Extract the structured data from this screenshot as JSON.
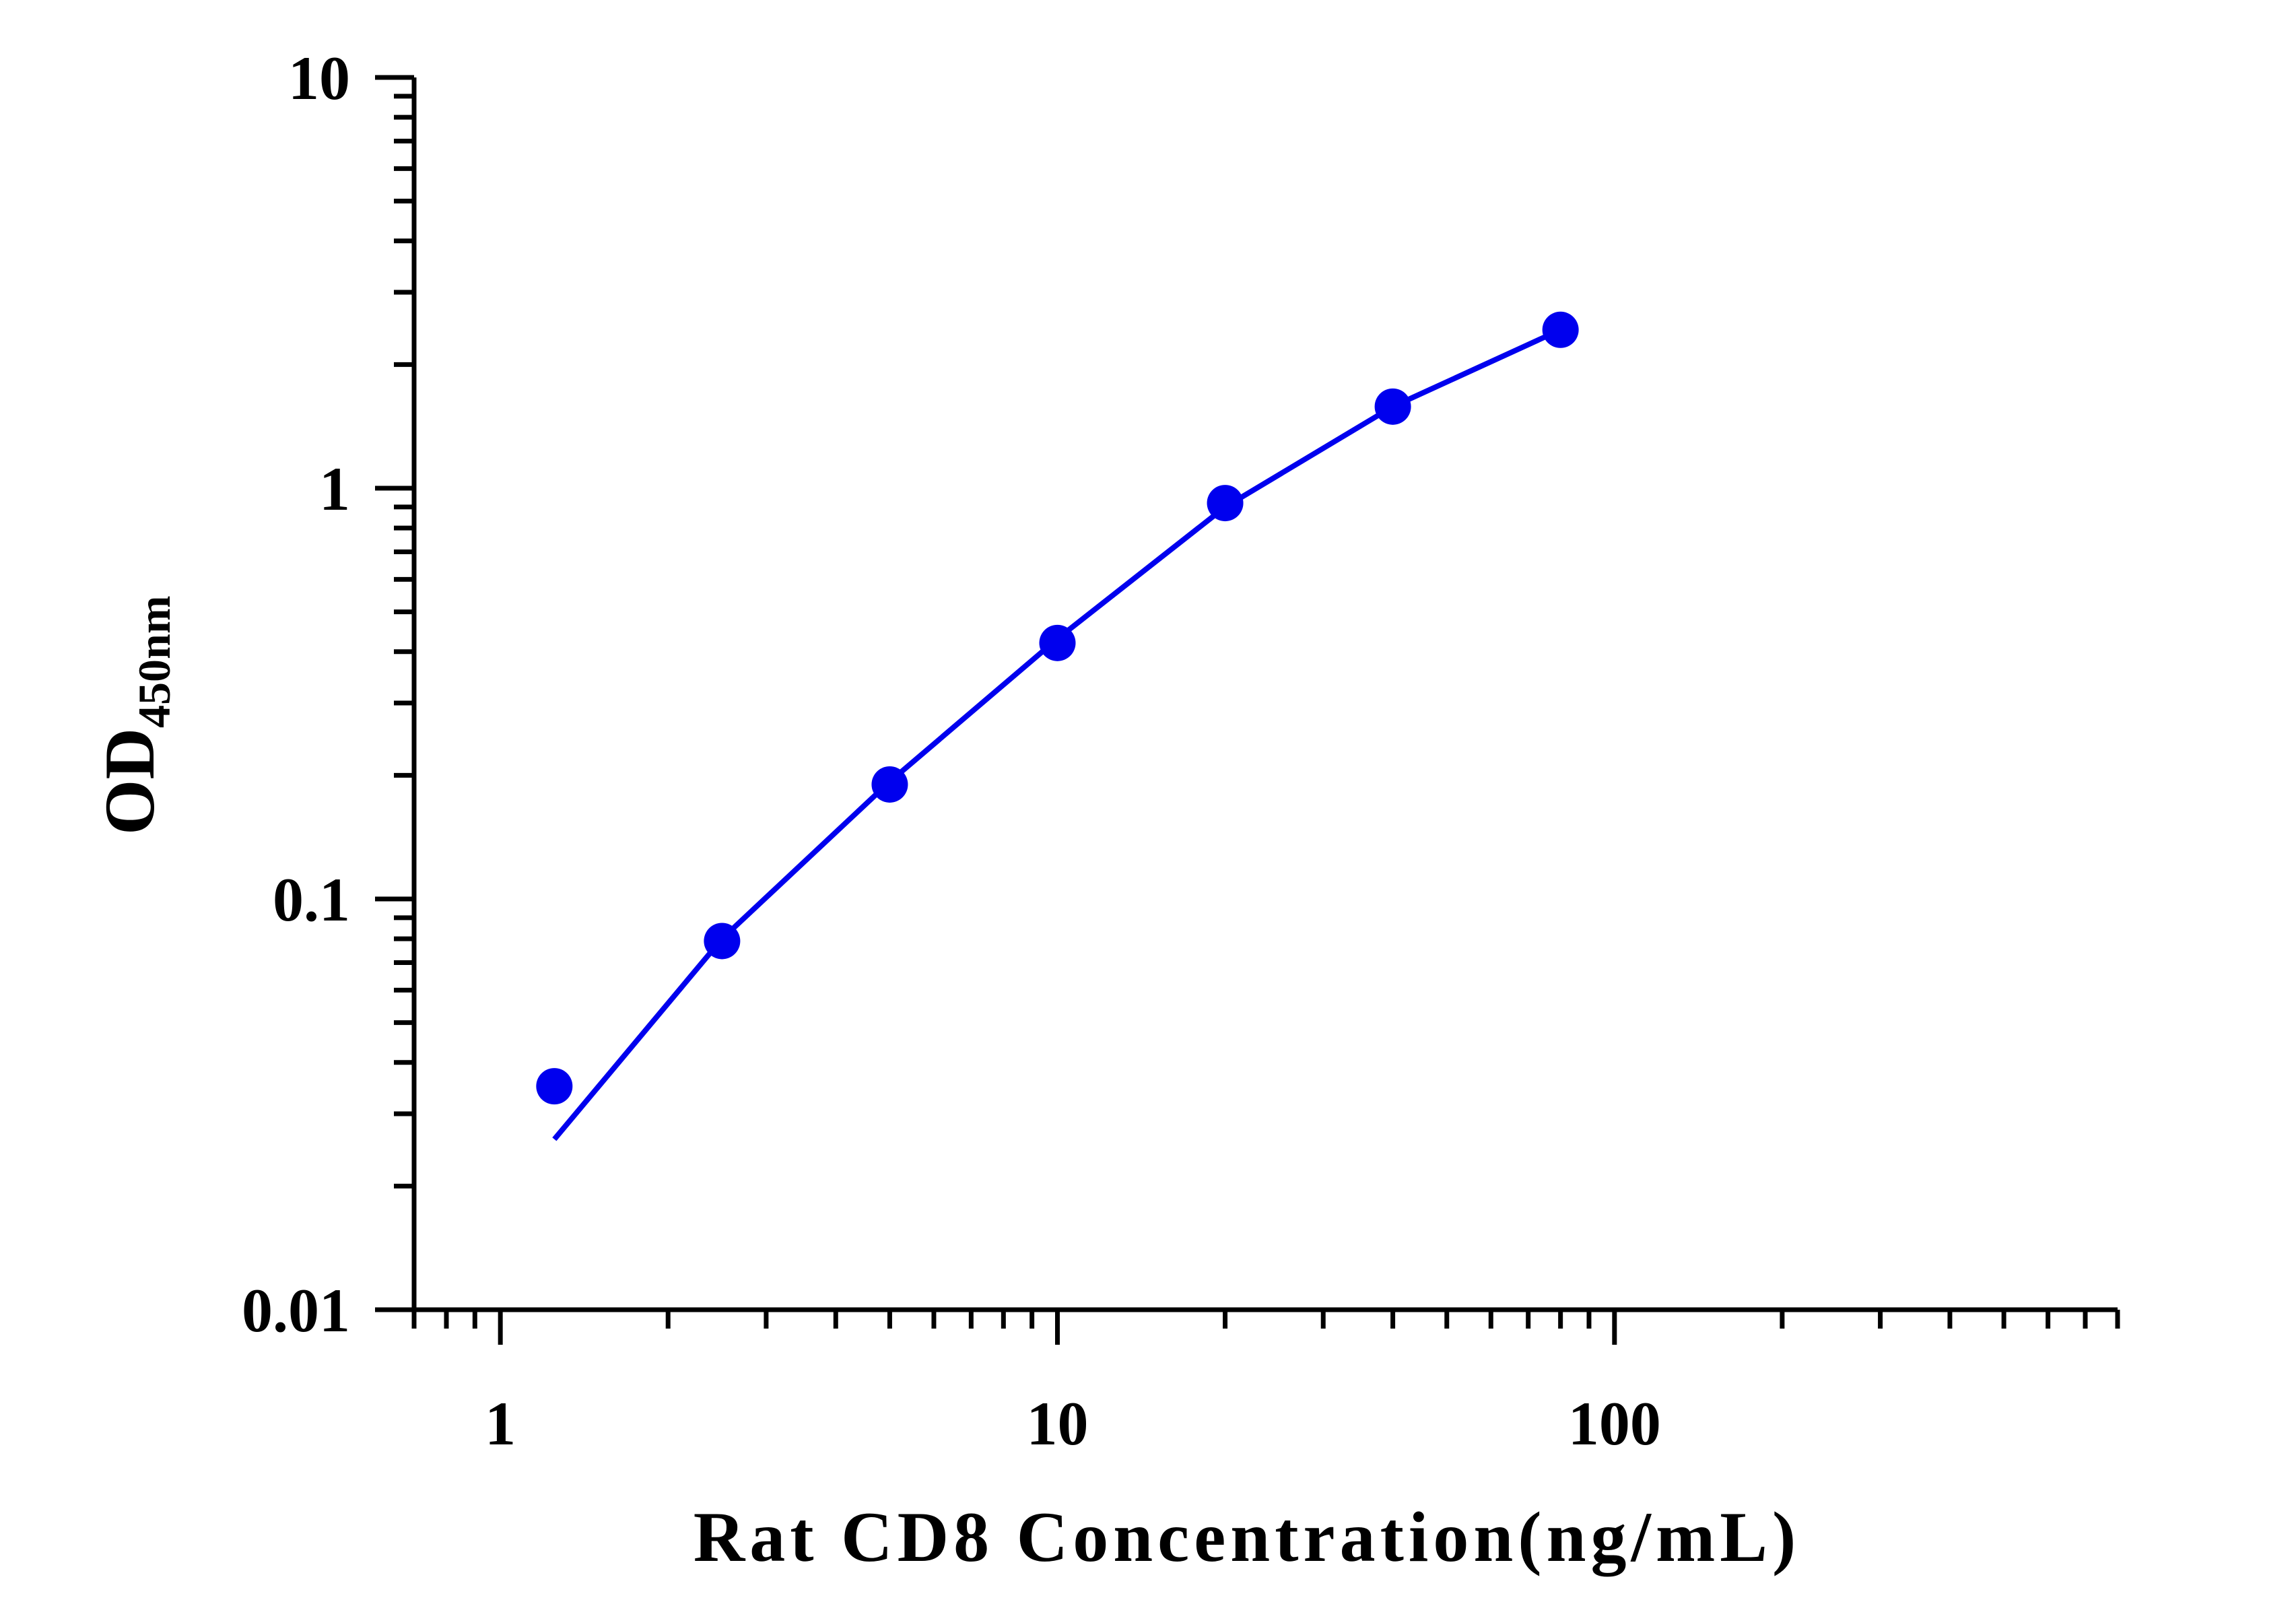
{
  "chart_data": {
    "type": "scatter",
    "xlabel": "Rat CD8 Concentration(ng/mL)",
    "ylabel": "OD",
    "ylabel_subscript": "450nm",
    "xscale": "log",
    "yscale": "log",
    "xlim": [
      0.7,
      800
    ],
    "ylim": [
      0.01,
      10
    ],
    "grid": false,
    "legend": "none",
    "x_ticks": [
      {
        "value": 1,
        "label": "1"
      },
      {
        "value": 10,
        "label": "10"
      },
      {
        "value": 100,
        "label": "100"
      }
    ],
    "y_ticks": [
      {
        "value": 0.01,
        "label": "0.01"
      },
      {
        "value": 0.1,
        "label": "0.1"
      },
      {
        "value": 1,
        "label": "1"
      },
      {
        "value": 10,
        "label": "10"
      }
    ],
    "series": [
      {
        "color": "#0000ee",
        "points": [
          {
            "x": 1.25,
            "y": 0.035
          },
          {
            "x": 2.5,
            "y": 0.079
          },
          {
            "x": 5,
            "y": 0.19
          },
          {
            "x": 10,
            "y": 0.42
          },
          {
            "x": 20,
            "y": 0.92
          },
          {
            "x": 40,
            "y": 1.58
          },
          {
            "x": 80,
            "y": 2.43
          }
        ],
        "fit_curve": {
          "color": "#0000ee",
          "points": [
            {
              "x": 1.25,
              "y": 0.026
            },
            {
              "x": 2.5,
              "y": 0.08
            },
            {
              "x": 5,
              "y": 0.193
            },
            {
              "x": 10,
              "y": 0.43
            },
            {
              "x": 20,
              "y": 0.9
            },
            {
              "x": 40,
              "y": 1.58
            },
            {
              "x": 80,
              "y": 2.43
            }
          ]
        }
      }
    ]
  }
}
